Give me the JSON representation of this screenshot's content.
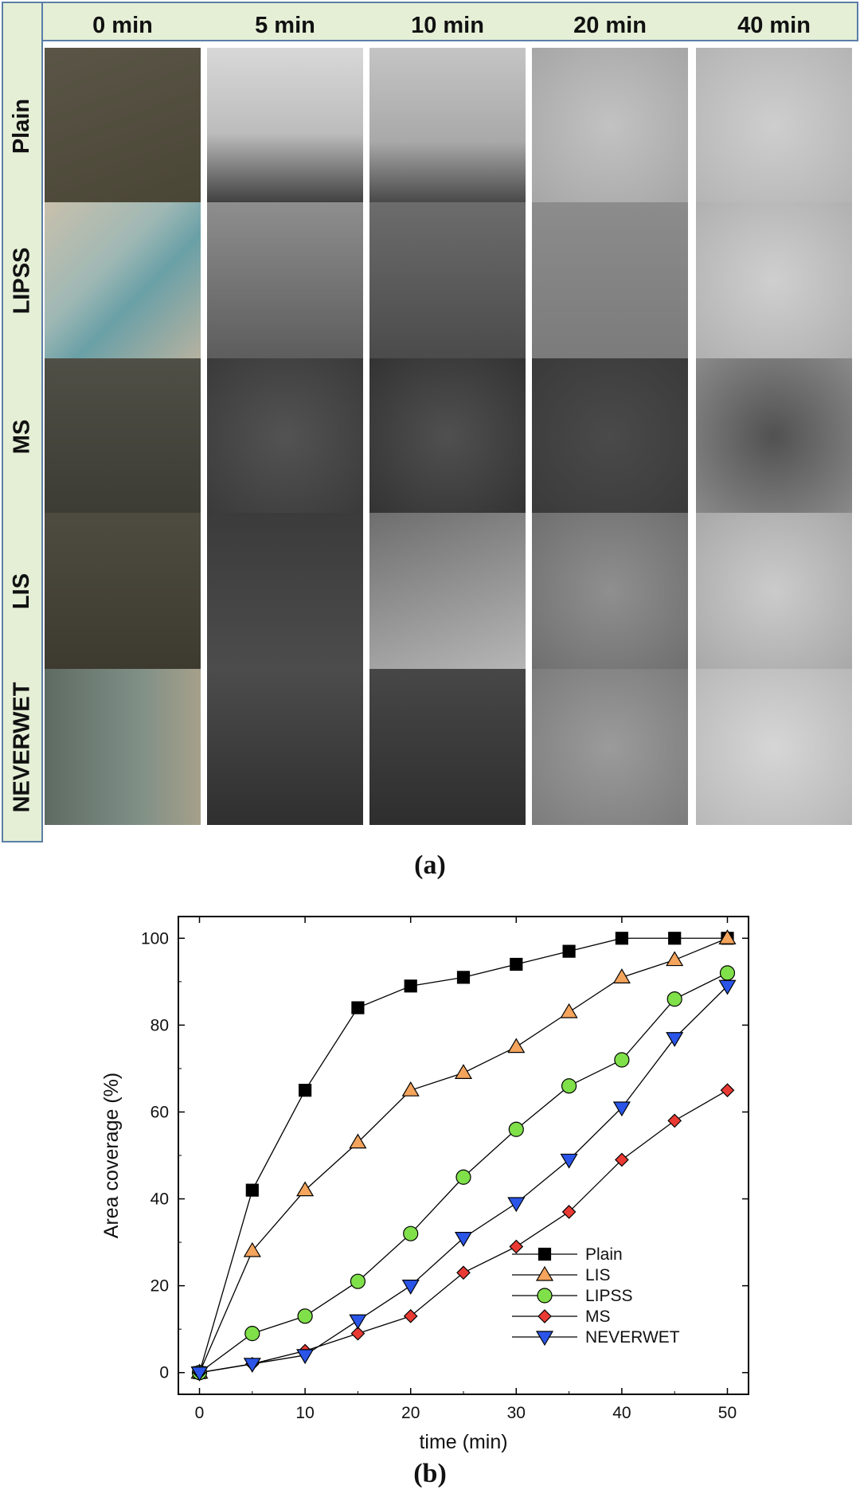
{
  "panel_a": {
    "label": "(a)",
    "columns": [
      "0 min",
      "5 min",
      "10 min",
      "20 min",
      "40 min"
    ],
    "rows": [
      "Plain",
      "LIPSS",
      "MS",
      "LIS",
      "NEVERWET"
    ]
  },
  "panel_b": {
    "label": "(b)"
  },
  "chart_data": {
    "type": "line",
    "title": "",
    "xlabel": "time (min)",
    "ylabel": "Area coverage (%)",
    "xlim": [
      -2,
      52
    ],
    "ylim": [
      -5,
      105
    ],
    "xticks": [
      0,
      10,
      20,
      30,
      40,
      50
    ],
    "yticks": [
      0,
      20,
      40,
      60,
      80,
      100
    ],
    "legend_position": "bottom-right",
    "x": [
      0,
      5,
      10,
      15,
      20,
      25,
      30,
      35,
      40,
      45,
      50
    ],
    "series": [
      {
        "name": "Plain",
        "marker": "square",
        "color": "#000000",
        "values": [
          0,
          42,
          65,
          84,
          89,
          91,
          94,
          97,
          100,
          100,
          100
        ]
      },
      {
        "name": "LIS",
        "marker": "triangle-up",
        "color": "#f4a45c",
        "values": [
          0,
          28,
          42,
          53,
          65,
          69,
          75,
          83,
          91,
          95,
          100
        ]
      },
      {
        "name": "LIPSS",
        "marker": "circle",
        "color": "#7fe04a",
        "values": [
          0,
          9,
          13,
          21,
          32,
          45,
          56,
          66,
          72,
          86,
          92
        ]
      },
      {
        "name": "MS",
        "marker": "diamond",
        "color": "#ea3a34",
        "values": [
          0,
          2,
          5,
          9,
          13,
          23,
          29,
          37,
          49,
          58,
          65
        ]
      },
      {
        "name": "NEVERWET",
        "marker": "triangle-down",
        "color": "#2a55e8",
        "values": [
          0,
          2,
          4,
          12,
          20,
          31,
          39,
          49,
          61,
          77,
          89
        ]
      }
    ]
  }
}
